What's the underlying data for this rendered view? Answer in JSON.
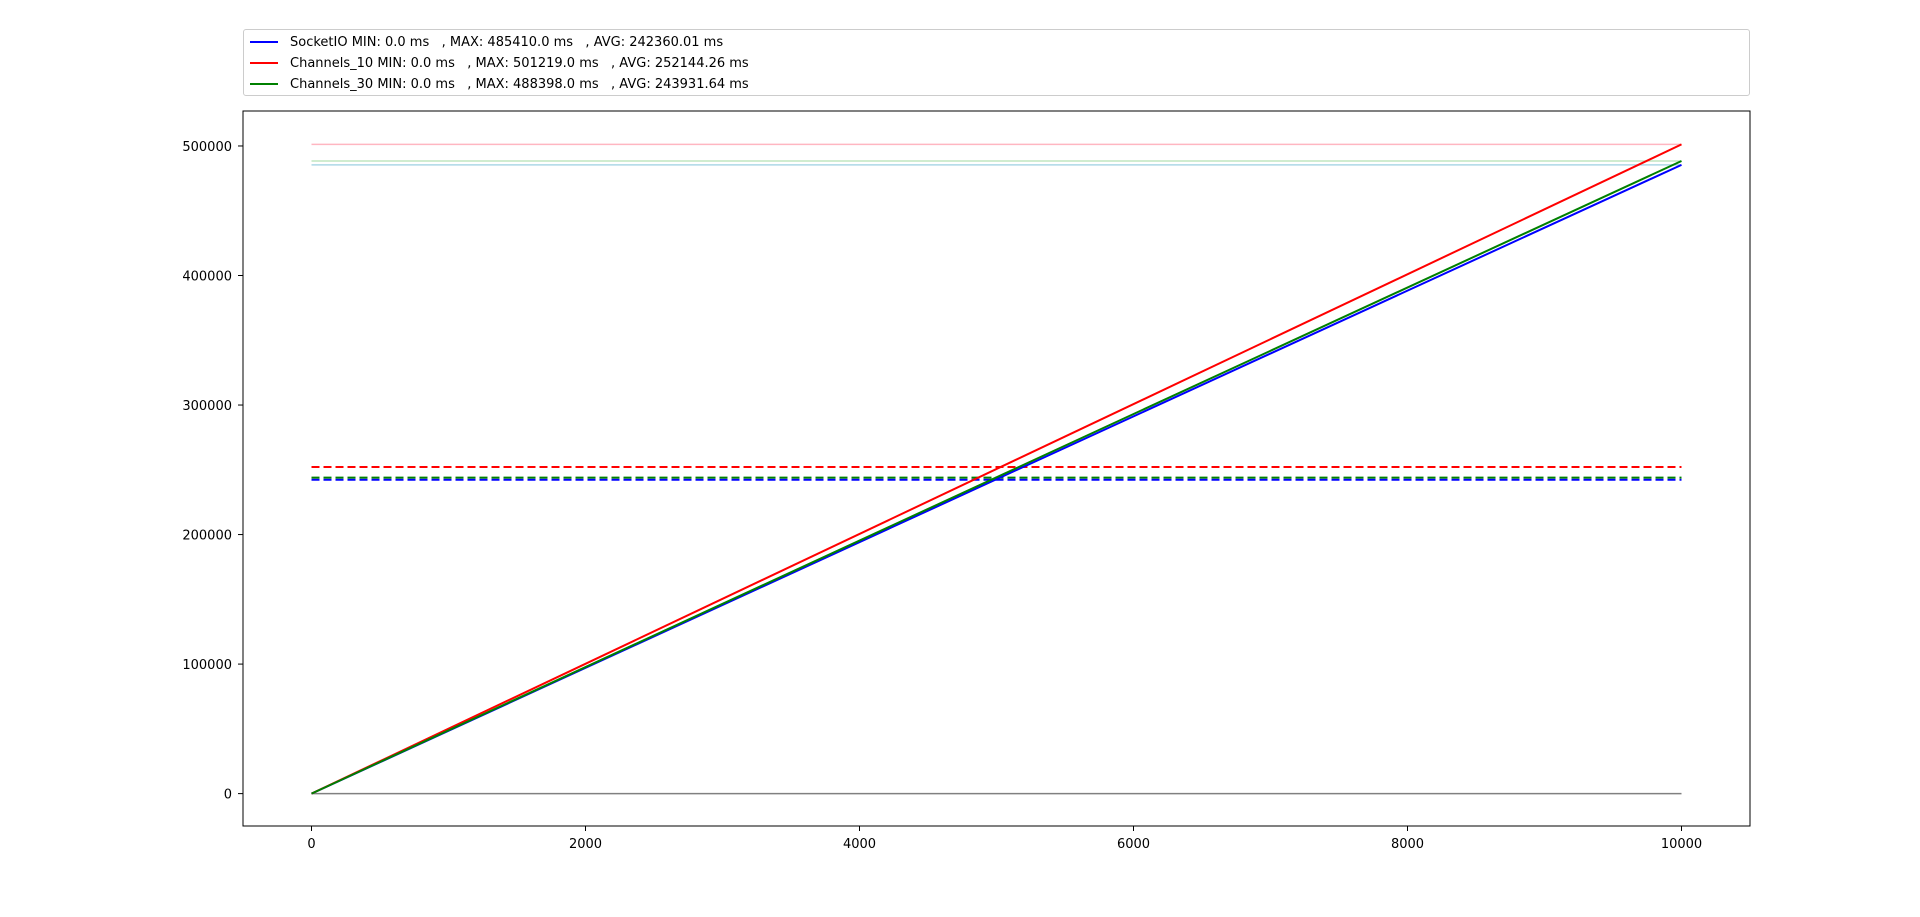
{
  "chart_data": {
    "type": "line",
    "title": "",
    "xlabel": "",
    "ylabel": "",
    "xlim": [
      -500,
      10500
    ],
    "ylim": [
      -25000,
      527000
    ],
    "x_ticks": [
      0,
      2000,
      4000,
      6000,
      8000,
      10000
    ],
    "y_ticks": [
      0,
      100000,
      200000,
      300000,
      400000,
      500000
    ],
    "x_tick_labels": [
      "0",
      "2000",
      "4000",
      "6000",
      "8000",
      "10000"
    ],
    "y_tick_labels": [
      "0",
      "100000",
      "200000",
      "300000",
      "400000",
      "500000"
    ],
    "grid": false,
    "legend_position": "top",
    "series": [
      {
        "name": "SocketIO MIN: 0.0 ms   , MAX: 485410.0 ms   , AVG: 242360.01 ms",
        "color": "#0000ff",
        "x": [
          0,
          10000
        ],
        "y": [
          0,
          485410.0
        ],
        "min": 0.0,
        "max": 485410.0,
        "avg": 242360.01
      },
      {
        "name": "Channels_10 MIN: 0.0 ms   , MAX: 501219.0 ms   , AVG: 252144.26 ms",
        "color": "#ff0000",
        "x": [
          0,
          10000
        ],
        "y": [
          0,
          501219.0
        ],
        "min": 0.0,
        "max": 501219.0,
        "avg": 252144.26
      },
      {
        "name": "Channels_30 MIN: 0.0 ms   , MAX: 488398.0 ms   , AVG: 243931.64 ms",
        "color": "#008000",
        "x": [
          0,
          10000
        ],
        "y": [
          0,
          488398.0
        ],
        "min": 0.0,
        "max": 488398.0,
        "avg": 243931.64
      }
    ],
    "reference_lines": {
      "max_colors": [
        "#add8e6",
        "#ffb6c1",
        "#c0e6c0"
      ],
      "min_color": "#808080",
      "avg_style": "dashed"
    }
  }
}
